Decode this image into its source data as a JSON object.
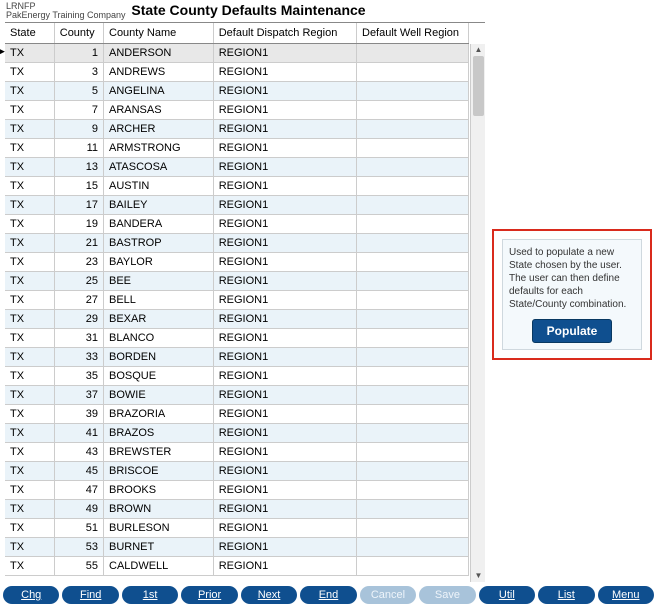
{
  "header": {
    "code": "LRNFP",
    "company": "PakEnergy Training Company",
    "title": "State County Defaults Maintenance"
  },
  "table": {
    "columns": {
      "state": "State",
      "county": "County",
      "county_name": "County Name",
      "ddr": "Default Dispatch Region",
      "dwr": "Default Well Region"
    },
    "rows": [
      {
        "state": "TX",
        "county": "1",
        "cname": "ANDERSON",
        "ddr": "REGION1",
        "dwr": ""
      },
      {
        "state": "TX",
        "county": "3",
        "cname": "ANDREWS",
        "ddr": "REGION1",
        "dwr": ""
      },
      {
        "state": "TX",
        "county": "5",
        "cname": "ANGELINA",
        "ddr": "REGION1",
        "dwr": ""
      },
      {
        "state": "TX",
        "county": "7",
        "cname": "ARANSAS",
        "ddr": "REGION1",
        "dwr": ""
      },
      {
        "state": "TX",
        "county": "9",
        "cname": "ARCHER",
        "ddr": "REGION1",
        "dwr": ""
      },
      {
        "state": "TX",
        "county": "11",
        "cname": "ARMSTRONG",
        "ddr": "REGION1",
        "dwr": ""
      },
      {
        "state": "TX",
        "county": "13",
        "cname": "ATASCOSA",
        "ddr": "REGION1",
        "dwr": ""
      },
      {
        "state": "TX",
        "county": "15",
        "cname": "AUSTIN",
        "ddr": "REGION1",
        "dwr": ""
      },
      {
        "state": "TX",
        "county": "17",
        "cname": "BAILEY",
        "ddr": "REGION1",
        "dwr": ""
      },
      {
        "state": "TX",
        "county": "19",
        "cname": "BANDERA",
        "ddr": "REGION1",
        "dwr": ""
      },
      {
        "state": "TX",
        "county": "21",
        "cname": "BASTROP",
        "ddr": "REGION1",
        "dwr": ""
      },
      {
        "state": "TX",
        "county": "23",
        "cname": "BAYLOR",
        "ddr": "REGION1",
        "dwr": ""
      },
      {
        "state": "TX",
        "county": "25",
        "cname": "BEE",
        "ddr": "REGION1",
        "dwr": ""
      },
      {
        "state": "TX",
        "county": "27",
        "cname": "BELL",
        "ddr": "REGION1",
        "dwr": ""
      },
      {
        "state": "TX",
        "county": "29",
        "cname": "BEXAR",
        "ddr": "REGION1",
        "dwr": ""
      },
      {
        "state": "TX",
        "county": "31",
        "cname": "BLANCO",
        "ddr": "REGION1",
        "dwr": ""
      },
      {
        "state": "TX",
        "county": "33",
        "cname": "BORDEN",
        "ddr": "REGION1",
        "dwr": ""
      },
      {
        "state": "TX",
        "county": "35",
        "cname": "BOSQUE",
        "ddr": "REGION1",
        "dwr": ""
      },
      {
        "state": "TX",
        "county": "37",
        "cname": "BOWIE",
        "ddr": "REGION1",
        "dwr": ""
      },
      {
        "state": "TX",
        "county": "39",
        "cname": "BRAZORIA",
        "ddr": "REGION1",
        "dwr": ""
      },
      {
        "state": "TX",
        "county": "41",
        "cname": "BRAZOS",
        "ddr": "REGION1",
        "dwr": ""
      },
      {
        "state": "TX",
        "county": "43",
        "cname": "BREWSTER",
        "ddr": "REGION1",
        "dwr": ""
      },
      {
        "state": "TX",
        "county": "45",
        "cname": "BRISCOE",
        "ddr": "REGION1",
        "dwr": ""
      },
      {
        "state": "TX",
        "county": "47",
        "cname": "BROOKS",
        "ddr": "REGION1",
        "dwr": ""
      },
      {
        "state": "TX",
        "county": "49",
        "cname": "BROWN",
        "ddr": "REGION1",
        "dwr": ""
      },
      {
        "state": "TX",
        "county": "51",
        "cname": "BURLESON",
        "ddr": "REGION1",
        "dwr": ""
      },
      {
        "state": "TX",
        "county": "53",
        "cname": "BURNET",
        "ddr": "REGION1",
        "dwr": ""
      },
      {
        "state": "TX",
        "county": "55",
        "cname": "CALDWELL",
        "ddr": "REGION1",
        "dwr": ""
      }
    ]
  },
  "callout": {
    "text": "Used to populate a new State chosen by the user. The user can then define defaults for each State/County combination.",
    "button": "Populate"
  },
  "buttons": {
    "chg": "Chg",
    "find": "Find",
    "first": "1st",
    "prior": "Prior",
    "next": "Next",
    "end": "End",
    "cancel": "Cancel",
    "save": "Save",
    "util": "Util",
    "list": "List",
    "menu": "Menu"
  },
  "colors": {
    "primary": "#0f4f8f",
    "alt_row": "#eaf3f9",
    "highlight_border": "#d92a1c"
  }
}
